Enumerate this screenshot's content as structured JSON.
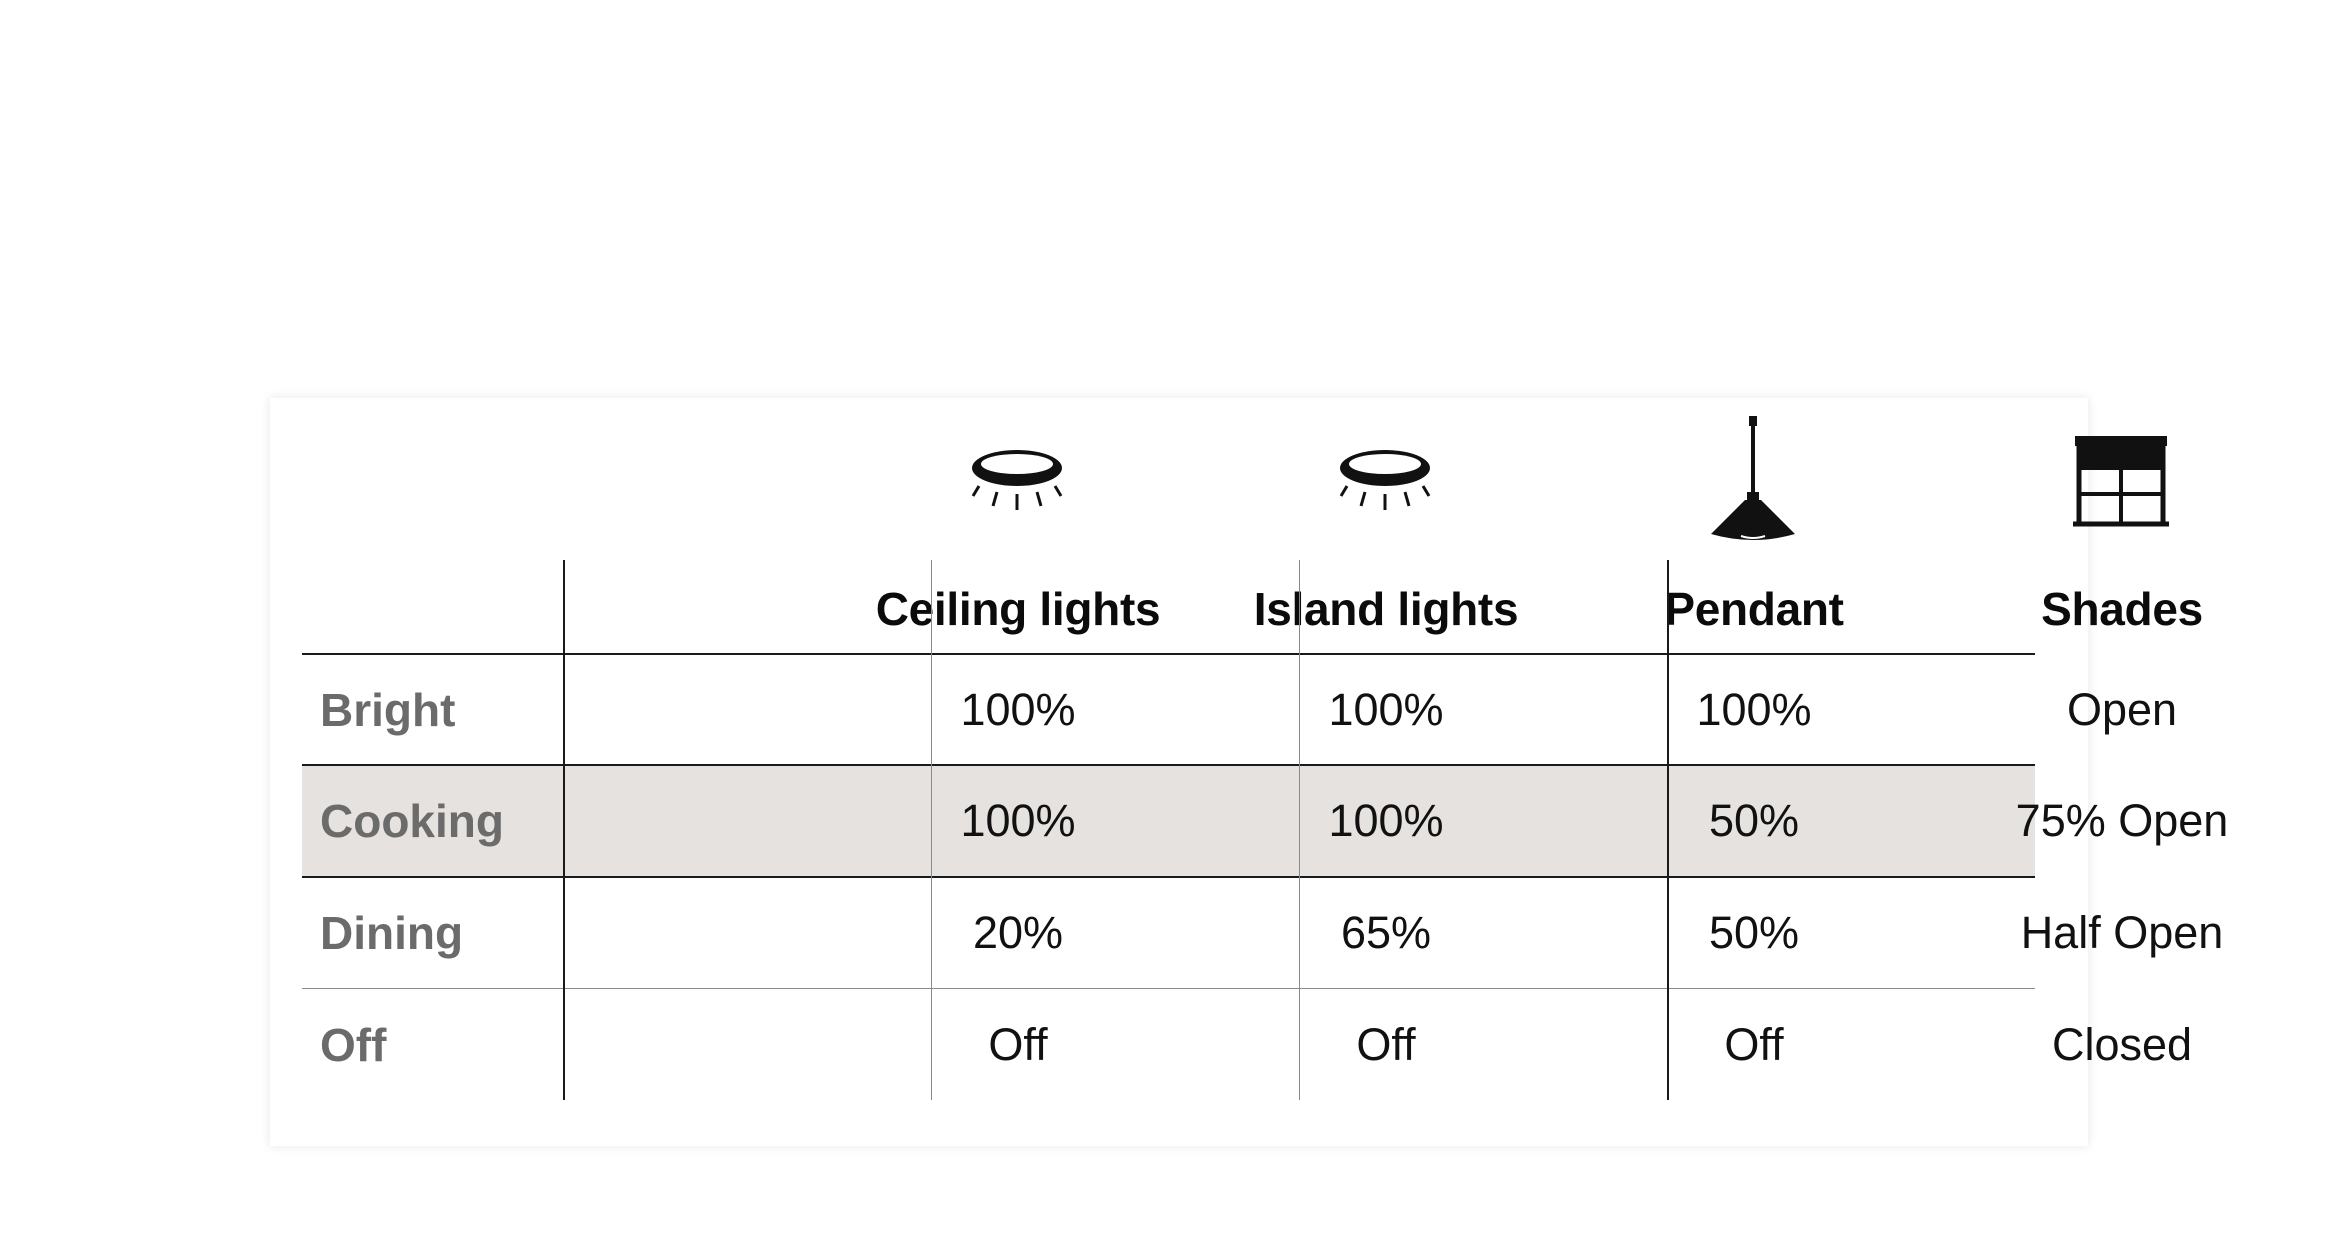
{
  "columns": [
    {
      "label": "Ceiling lights",
      "icon": "ceiling-light-icon"
    },
    {
      "label": "Island lights",
      "icon": "island-light-icon"
    },
    {
      "label": "Pendant",
      "icon": "pendant-lamp-icon"
    },
    {
      "label": "Shades",
      "icon": "window-shades-icon"
    }
  ],
  "rows": [
    {
      "label": "Bright",
      "values": [
        "100%",
        "100%",
        "100%",
        "Open"
      ],
      "shaded": false
    },
    {
      "label": "Cooking",
      "values": [
        "100%",
        "100%",
        "50%",
        "75% Open"
      ],
      "shaded": true
    },
    {
      "label": "Dining",
      "values": [
        "20%",
        "65%",
        "50%",
        "Half Open"
      ],
      "shaded": false
    },
    {
      "label": "Off",
      "values": [
        "Off",
        "Off",
        "Off",
        "Closed"
      ],
      "shaded": false
    }
  ],
  "colors": {
    "row_label": "#6b6b6b",
    "shaded_row": "#e5e2df",
    "header_text": "#0b0b0b"
  }
}
